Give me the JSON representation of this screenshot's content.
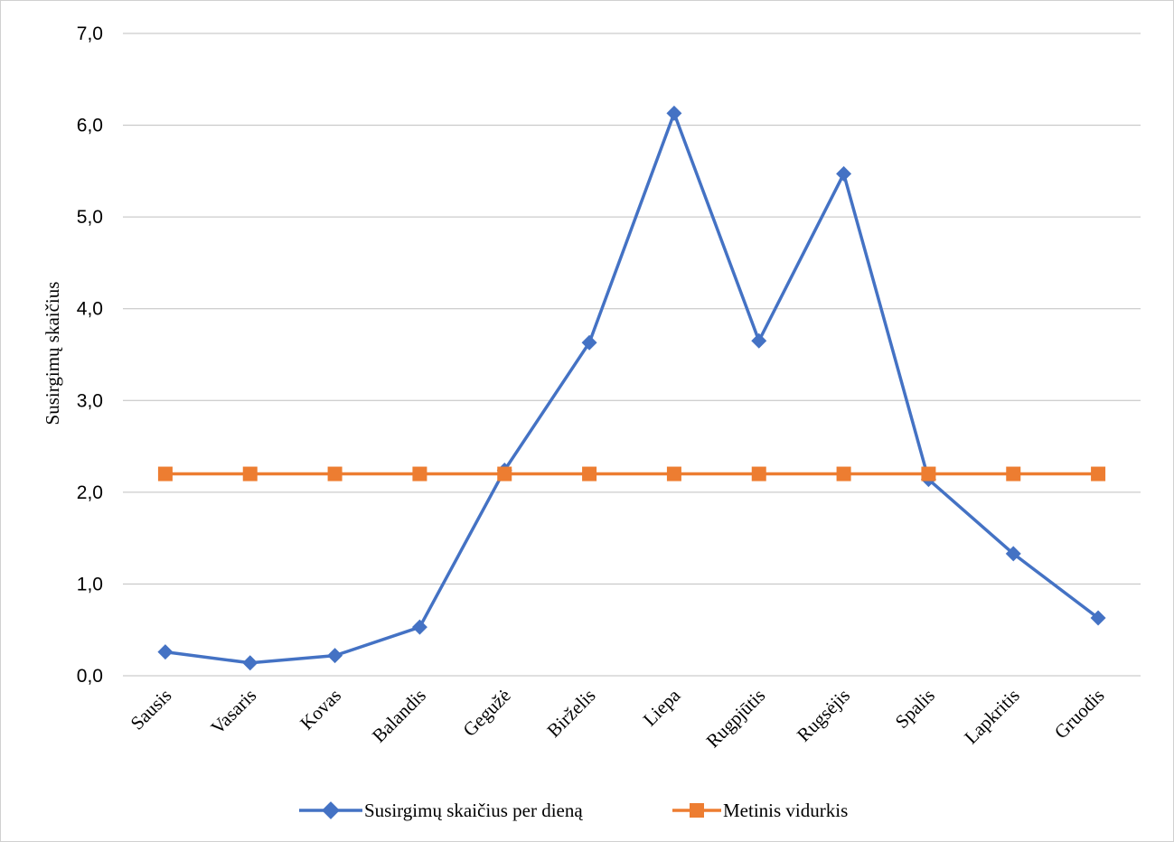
{
  "chart_data": {
    "type": "line",
    "title": "",
    "xlabel": "",
    "ylabel": "Susirgimų skaičius",
    "ylim": [
      0,
      7
    ],
    "ytick_step": 1,
    "yticks": [
      "0,0",
      "1,0",
      "2,0",
      "3,0",
      "4,0",
      "5,0",
      "6,0",
      "7,0"
    ],
    "grid": true,
    "legend_position": "bottom",
    "categories": [
      "Sausis",
      "Vasaris",
      "Kovas",
      "Balandis",
      "Gegužė",
      "Birželis",
      "Liepa",
      "Rugpjūtis",
      "Rugsėjis",
      "Spalis",
      "Lapkritis",
      "Gruodis"
    ],
    "series": [
      {
        "name": "Susirgimų skaičius per dieną",
        "color": "#4472C4",
        "marker": "diamond",
        "values": [
          0.26,
          0.14,
          0.22,
          0.53,
          2.24,
          3.63,
          6.13,
          3.65,
          5.47,
          2.14,
          1.33,
          0.63
        ]
      },
      {
        "name": "Metinis vidurkis",
        "color": "#ED7D31",
        "marker": "square",
        "values": [
          2.2,
          2.2,
          2.2,
          2.2,
          2.2,
          2.2,
          2.2,
          2.2,
          2.2,
          2.2,
          2.2,
          2.2
        ]
      }
    ]
  }
}
